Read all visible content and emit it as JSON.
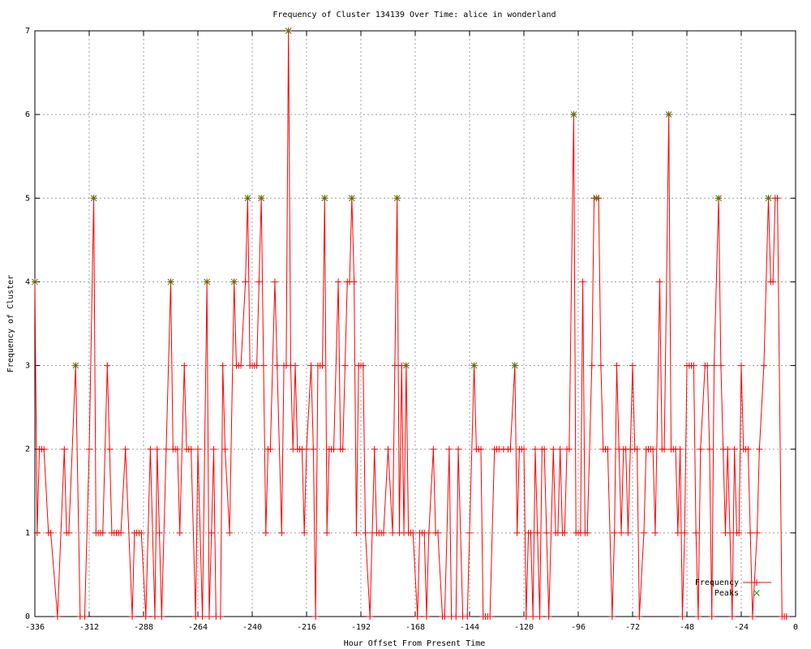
{
  "chart_data": {
    "type": "line",
    "title": "Frequency of Cluster 134139 Over Time: alice in wonderland",
    "x_label": "Hour Offset From Present Time",
    "y_label": "Frequency of Cluster",
    "xlim": [
      -336,
      0
    ],
    "xticks": [
      -336,
      -312,
      -288,
      -264,
      -240,
      -216,
      -192,
      -168,
      -144,
      -120,
      -96,
      -72,
      -48,
      -24,
      0
    ],
    "ylim": [
      0,
      7
    ],
    "yticks": [
      0,
      1,
      2,
      3,
      4,
      5,
      6,
      7
    ],
    "grid": true,
    "legend": "bottom-right",
    "series": [
      {
        "name": "Frequency",
        "color": "#ff0000",
        "marker": "plus",
        "line": true,
        "x": [
          -336,
          -335,
          -334,
          -333,
          -332,
          -330,
          -329,
          -326,
          -323,
          -322,
          -321,
          -318,
          -316,
          -314,
          -312,
          -310,
          -309,
          -308,
          -307,
          -306,
          -304,
          -303,
          -302,
          -301,
          -300,
          -299,
          -298,
          -296,
          -293,
          -292,
          -291,
          -290,
          -289,
          -287,
          -285,
          -283,
          -282,
          -281,
          -280,
          -278,
          -276,
          -275,
          -274,
          -273,
          -272,
          -270,
          -269,
          -268,
          -267,
          -265,
          -264,
          -262,
          -260,
          -259,
          -258,
          -257,
          -256,
          -254,
          -253,
          -252,
          -250,
          -248,
          -247,
          -246,
          -245,
          -243,
          -242,
          -241,
          -240,
          -239,
          -238,
          -237,
          -236,
          -235,
          -234,
          -233,
          -232,
          -230,
          -229,
          -227,
          -226,
          -225,
          -224,
          -223,
          -222,
          -221,
          -220,
          -219,
          -218,
          -217,
          -216,
          -214,
          -213,
          -212,
          -211,
          -210,
          -209,
          -208,
          -207,
          -206,
          -205,
          -204,
          -202,
          -201,
          -200,
          -199,
          -198,
          -197,
          -196,
          -195,
          -194,
          -193,
          -192,
          -191,
          -190,
          -188,
          -187,
          -186,
          -185,
          -184,
          -183,
          -182,
          -180,
          -178,
          -177,
          -176,
          -175,
          -174,
          -173,
          -172,
          -171,
          -170,
          -169,
          -167,
          -166,
          -165,
          -164,
          -163,
          -162,
          -160,
          -159,
          -158,
          -156,
          -155,
          -153,
          -152,
          -150,
          -149,
          -147,
          -145,
          -144,
          -142,
          -141,
          -140,
          -139,
          -138,
          -137,
          -136,
          -135,
          -133,
          -132,
          -131,
          -129,
          -127,
          -126,
          -124,
          -123,
          -122,
          -121,
          -120,
          -119,
          -118,
          -117,
          -116,
          -115,
          -114,
          -113,
          -112,
          -111,
          -110,
          -109,
          -107,
          -106,
          -105,
          -104,
          -103,
          -102,
          -101,
          -100,
          -98,
          -97,
          -96,
          -95,
          -94,
          -93,
          -92,
          -90,
          -89,
          -88,
          -87,
          -86,
          -85,
          -84,
          -83,
          -81,
          -80,
          -79,
          -78,
          -77,
          -76,
          -75,
          -74,
          -73,
          -72,
          -71,
          -70,
          -69,
          -67,
          -66,
          -65,
          -64,
          -63,
          -62,
          -60,
          -59,
          -58,
          -56,
          -55,
          -54,
          -53,
          -52,
          -51,
          -50,
          -49,
          -48,
          -47,
          -46,
          -45,
          -44,
          -43,
          -42,
          -40,
          -39,
          -38,
          -37,
          -36,
          -34,
          -33,
          -32,
          -31,
          -30,
          -29,
          -28,
          -27,
          -26,
          -25,
          -24,
          -23,
          -22,
          -21,
          -20,
          -19,
          -17,
          -16,
          -14,
          -12,
          -11,
          -10,
          -9,
          -8,
          -6,
          -5,
          -4
        ],
        "values": [
          4,
          1,
          2,
          2,
          2,
          1,
          1,
          0,
          2,
          1,
          1,
          3,
          0,
          0,
          2,
          5,
          1,
          1,
          1,
          1,
          3,
          2,
          1,
          1,
          1,
          1,
          1,
          2,
          0,
          1,
          1,
          1,
          1,
          0,
          2,
          0,
          2,
          1,
          0,
          2,
          4,
          2,
          2,
          2,
          1,
          3,
          2,
          2,
          2,
          0,
          2,
          0,
          4,
          0,
          1,
          2,
          0,
          0,
          3,
          2,
          1,
          4,
          3,
          3,
          3,
          4,
          5,
          3,
          3,
          3,
          3,
          4,
          5,
          3,
          1,
          2,
          2,
          4,
          3,
          1,
          3,
          3,
          7,
          3,
          2,
          3,
          2,
          2,
          2,
          1,
          2,
          3,
          2,
          0,
          3,
          3,
          3,
          5,
          1,
          2,
          2,
          2,
          4,
          2,
          2,
          3,
          4,
          4,
          5,
          4,
          1,
          3,
          3,
          3,
          1,
          0,
          1,
          2,
          1,
          1,
          1,
          1,
          2,
          1,
          3,
          5,
          1,
          3,
          1,
          3,
          1,
          1,
          1,
          0,
          1,
          1,
          1,
          0,
          1,
          2,
          1,
          1,
          0,
          0,
          2,
          0,
          0,
          2,
          0,
          0,
          1,
          3,
          2,
          2,
          2,
          0,
          0,
          0,
          0,
          2,
          2,
          2,
          2,
          2,
          2,
          3,
          1,
          2,
          2,
          2,
          0,
          1,
          1,
          0,
          2,
          1,
          0,
          2,
          2,
          1,
          0,
          2,
          1,
          1,
          2,
          1,
          1,
          2,
          2,
          6,
          1,
          1,
          1,
          4,
          1,
          1,
          3,
          5,
          5,
          5,
          3,
          2,
          2,
          2,
          0,
          1,
          3,
          2,
          1,
          2,
          2,
          1,
          2,
          3,
          2,
          2,
          0,
          1,
          2,
          2,
          2,
          2,
          1,
          4,
          2,
          2,
          6,
          2,
          2,
          2,
          1,
          2,
          0,
          1,
          3,
          3,
          3,
          3,
          1,
          0,
          2,
          3,
          3,
          2,
          0,
          3,
          5,
          3,
          2,
          1,
          2,
          1,
          0,
          2,
          1,
          1,
          3,
          2,
          2,
          2,
          1,
          0,
          1,
          2,
          3,
          5,
          4,
          4,
          5,
          5,
          0,
          0,
          0
        ]
      },
      {
        "name": "Peaks",
        "color": "#00a000",
        "marker": "cross",
        "line": false,
        "x": [
          -336,
          -318,
          -310,
          -276,
          -260,
          -248,
          -242,
          -236,
          -224,
          -208,
          -196,
          -176,
          -172,
          -142,
          -124,
          -98,
          -88,
          -56,
          -34,
          -12
        ],
        "values": [
          4,
          3,
          5,
          4,
          4,
          4,
          5,
          5,
          7,
          5,
          5,
          5,
          3,
          3,
          3,
          6,
          5,
          6,
          5,
          5
        ]
      }
    ]
  }
}
